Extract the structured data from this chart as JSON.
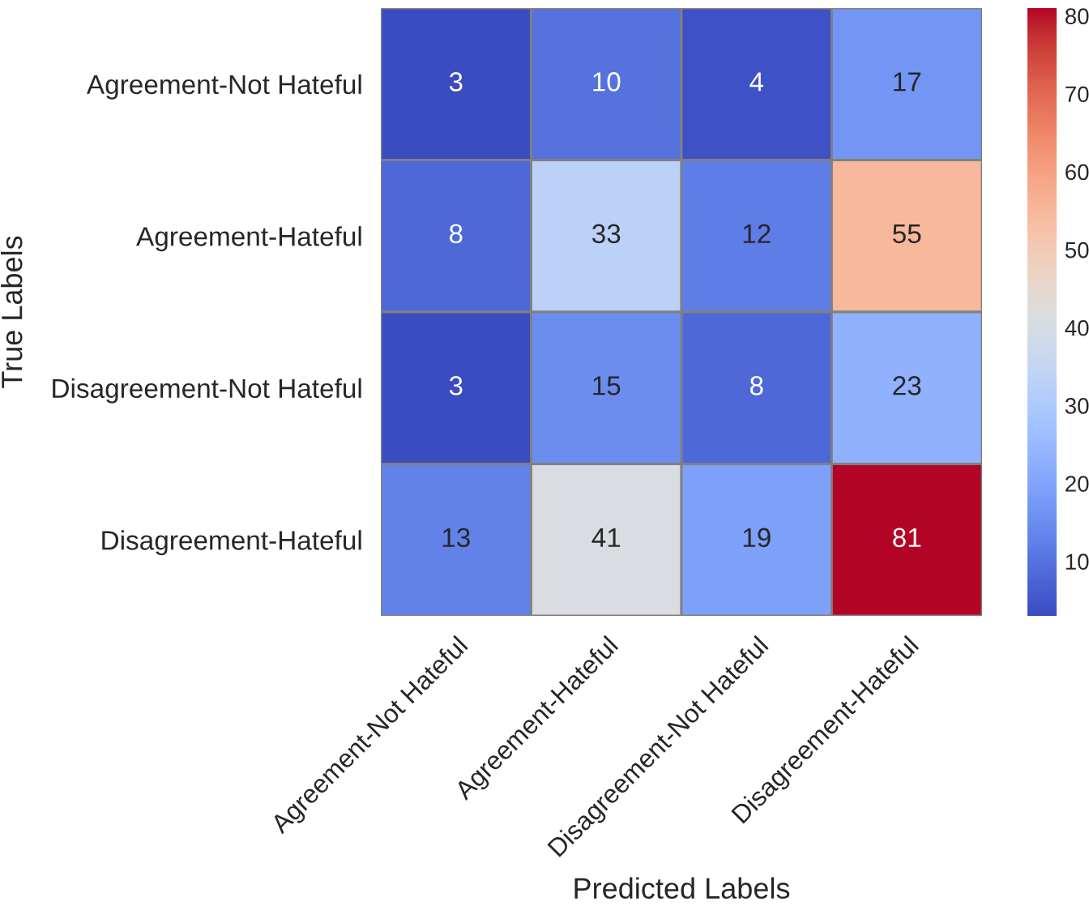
{
  "chart_data": {
    "type": "heatmap",
    "xlabel": "Predicted Labels",
    "ylabel": "True Labels",
    "categories": [
      "Agreement-Not Hateful",
      "Agreement-Hateful",
      "Disagreement-Not Hateful",
      "Disagreement-Hateful"
    ],
    "y_categories": [
      "Agreement-Not Hateful",
      "Agreement-Hateful",
      "Disagreement-Not Hateful",
      "Disagreement-Hateful"
    ],
    "cells": [
      [
        3,
        10,
        4,
        17
      ],
      [
        8,
        33,
        12,
        55
      ],
      [
        3,
        15,
        8,
        23
      ],
      [
        13,
        41,
        19,
        81
      ]
    ],
    "data_labels": true,
    "clim": [
      3,
      81
    ],
    "cticks": [
      10,
      20,
      30,
      40,
      50,
      60,
      70,
      80
    ]
  }
}
